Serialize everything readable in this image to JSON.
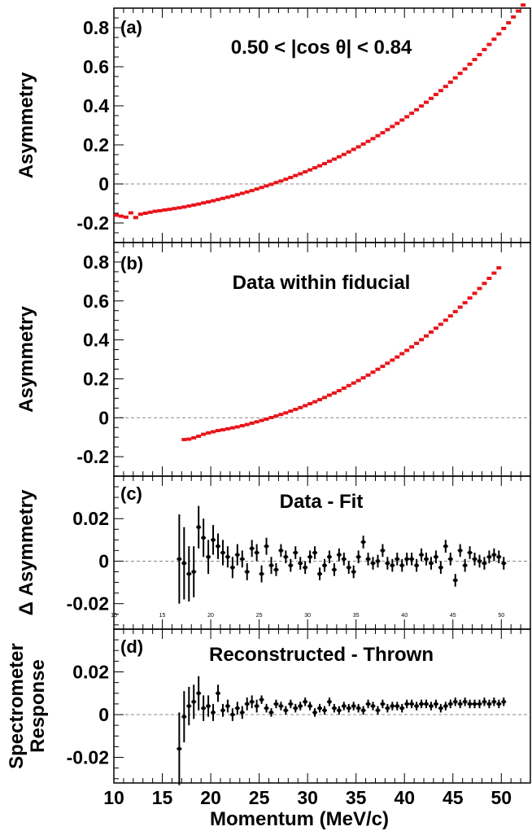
{
  "x_axis": {
    "label": "Momentum (MeV/c)",
    "ticks": [
      "10",
      "15",
      "20",
      "25",
      "30",
      "35",
      "40",
      "45",
      "50"
    ],
    "small_ticks": [
      "10",
      "15",
      "20",
      "25",
      "30",
      "35",
      "40",
      "45",
      "50"
    ]
  },
  "chart_data": [
    {
      "type": "scatter",
      "panel": "(a)",
      "annotation": "0.50 < |cos θ| < 0.84",
      "ylabel": "Asymmetry",
      "xlim": [
        10,
        53
      ],
      "ylim": [
        -0.3,
        0.9
      ],
      "yticks": [
        "-0.2",
        "0",
        "0.2",
        "0.4",
        "0.6",
        "0.8"
      ],
      "marker_color": "#e8141a",
      "points": [
        [
          10.25,
          -0.16
        ],
        [
          10.75,
          -0.165
        ],
        [
          11.25,
          -0.17
        ],
        [
          11.75,
          -0.148
        ],
        [
          12.25,
          -0.172
        ],
        [
          12.75,
          -0.155
        ],
        [
          13.25,
          -0.15
        ],
        [
          13.75,
          -0.145
        ],
        [
          14.25,
          -0.14
        ],
        [
          14.75,
          -0.137
        ],
        [
          15.25,
          -0.133
        ],
        [
          15.75,
          -0.13
        ],
        [
          16.25,
          -0.126
        ],
        [
          16.75,
          -0.122
        ],
        [
          17.25,
          -0.118
        ],
        [
          17.75,
          -0.113
        ],
        [
          18.25,
          -0.108
        ],
        [
          18.75,
          -0.103
        ],
        [
          19.25,
          -0.097
        ],
        [
          19.75,
          -0.092
        ],
        [
          20.25,
          -0.086
        ],
        [
          20.75,
          -0.08
        ],
        [
          21.25,
          -0.074
        ],
        [
          21.75,
          -0.068
        ],
        [
          22.25,
          -0.062
        ],
        [
          22.75,
          -0.055
        ],
        [
          23.25,
          -0.048
        ],
        [
          23.75,
          -0.041
        ],
        [
          24.25,
          -0.034
        ],
        [
          24.75,
          -0.026
        ],
        [
          25.25,
          -0.018
        ],
        [
          25.75,
          -0.01
        ],
        [
          26.25,
          -0.002
        ],
        [
          26.75,
          0.007
        ],
        [
          27.25,
          0.015
        ],
        [
          27.75,
          0.024
        ],
        [
          28.25,
          0.033
        ],
        [
          28.75,
          0.043
        ],
        [
          29.25,
          0.052
        ],
        [
          29.75,
          0.062
        ],
        [
          30.25,
          0.072
        ],
        [
          30.75,
          0.083
        ],
        [
          31.25,
          0.093
        ],
        [
          31.75,
          0.104
        ],
        [
          32.25,
          0.116
        ],
        [
          32.75,
          0.127
        ],
        [
          33.25,
          0.139
        ],
        [
          33.75,
          0.151
        ],
        [
          34.25,
          0.164
        ],
        [
          34.75,
          0.177
        ],
        [
          35.25,
          0.19
        ],
        [
          35.75,
          0.204
        ],
        [
          36.25,
          0.218
        ],
        [
          36.75,
          0.232
        ],
        [
          37.25,
          0.247
        ],
        [
          37.75,
          0.262
        ],
        [
          38.25,
          0.278
        ],
        [
          38.75,
          0.294
        ],
        [
          39.25,
          0.31
        ],
        [
          39.75,
          0.327
        ],
        [
          40.25,
          0.344
        ],
        [
          40.75,
          0.362
        ],
        [
          41.25,
          0.38
        ],
        [
          41.75,
          0.399
        ],
        [
          42.25,
          0.418
        ],
        [
          42.75,
          0.438
        ],
        [
          43.25,
          0.458
        ],
        [
          43.75,
          0.478
        ],
        [
          44.25,
          0.499
        ],
        [
          44.75,
          0.521
        ],
        [
          45.25,
          0.543
        ],
        [
          45.75,
          0.566
        ],
        [
          46.25,
          0.589
        ],
        [
          46.75,
          0.613
        ],
        [
          47.25,
          0.637
        ],
        [
          47.75,
          0.662
        ],
        [
          48.25,
          0.688
        ],
        [
          48.75,
          0.714
        ],
        [
          49.25,
          0.741
        ],
        [
          49.75,
          0.768
        ],
        [
          50.25,
          0.796
        ],
        [
          50.75,
          0.825
        ],
        [
          51.25,
          0.855
        ],
        [
          51.75,
          0.885
        ],
        [
          52.25,
          0.916
        ]
      ]
    },
    {
      "type": "scatter",
      "panel": "(b)",
      "annotation": "Data within fiducial",
      "ylabel": "Asymmetry",
      "xlim": [
        10,
        53
      ],
      "ylim": [
        -0.3,
        0.9
      ],
      "yticks": [
        "-0.2",
        "0",
        "0.2",
        "0.4",
        "0.6",
        "0.8"
      ],
      "marker_color": "#e8141a",
      "points": [
        [
          17.25,
          -0.112
        ],
        [
          17.75,
          -0.11
        ],
        [
          18.25,
          -0.103
        ],
        [
          18.75,
          -0.095
        ],
        [
          19.25,
          -0.085
        ],
        [
          19.75,
          -0.078
        ],
        [
          20.25,
          -0.072
        ],
        [
          20.75,
          -0.066
        ],
        [
          21.25,
          -0.062
        ],
        [
          21.75,
          -0.057
        ],
        [
          22.25,
          -0.052
        ],
        [
          22.75,
          -0.047
        ],
        [
          23.25,
          -0.041
        ],
        [
          23.75,
          -0.035
        ],
        [
          24.25,
          -0.028
        ],
        [
          24.75,
          -0.021
        ],
        [
          25.25,
          -0.014
        ],
        [
          25.75,
          -0.007
        ],
        [
          26.25,
          0.001
        ],
        [
          26.75,
          0.009
        ],
        [
          27.25,
          0.017
        ],
        [
          27.75,
          0.025
        ],
        [
          28.25,
          0.034
        ],
        [
          28.75,
          0.043
        ],
        [
          29.25,
          0.052
        ],
        [
          29.75,
          0.062
        ],
        [
          30.25,
          0.072
        ],
        [
          30.75,
          0.082
        ],
        [
          31.25,
          0.093
        ],
        [
          31.75,
          0.104
        ],
        [
          32.25,
          0.116
        ],
        [
          32.75,
          0.127
        ],
        [
          33.25,
          0.139
        ],
        [
          33.75,
          0.152
        ],
        [
          34.25,
          0.165
        ],
        [
          34.75,
          0.178
        ],
        [
          35.25,
          0.191
        ],
        [
          35.75,
          0.205
        ],
        [
          36.25,
          0.219
        ],
        [
          36.75,
          0.234
        ],
        [
          37.25,
          0.249
        ],
        [
          37.75,
          0.264
        ],
        [
          38.25,
          0.28
        ],
        [
          38.75,
          0.296
        ],
        [
          39.25,
          0.312
        ],
        [
          39.75,
          0.329
        ],
        [
          40.25,
          0.346
        ],
        [
          40.75,
          0.364
        ],
        [
          41.25,
          0.382
        ],
        [
          41.75,
          0.401
        ],
        [
          42.25,
          0.42
        ],
        [
          42.75,
          0.44
        ],
        [
          43.25,
          0.46
        ],
        [
          43.75,
          0.48
        ],
        [
          44.25,
          0.501
        ],
        [
          44.75,
          0.523
        ],
        [
          45.25,
          0.545
        ],
        [
          45.75,
          0.568
        ],
        [
          46.25,
          0.591
        ],
        [
          46.75,
          0.615
        ],
        [
          47.25,
          0.639
        ],
        [
          47.75,
          0.664
        ],
        [
          48.25,
          0.69
        ],
        [
          48.75,
          0.716
        ],
        [
          49.25,
          0.743
        ],
        [
          49.75,
          0.77
        ]
      ]
    },
    {
      "type": "scatter",
      "panel": "(c)",
      "annotation": "Data - Fit",
      "ylabel": "Δ Asymmetry",
      "xlim": [
        10,
        53
      ],
      "ylim": [
        -0.032,
        0.04
      ],
      "yticks": [
        "-0.02",
        "0",
        "0.02"
      ],
      "marker_color": "#000000",
      "points": [
        [
          16.75,
          0.001,
          0.021
        ],
        [
          17.25,
          -0.001,
          0.017
        ],
        [
          17.75,
          -0.006,
          0.013
        ],
        [
          18.25,
          -0.005,
          0.012
        ],
        [
          18.75,
          0.016,
          0.01
        ],
        [
          19.25,
          0.011,
          0.009
        ],
        [
          19.75,
          0.002,
          0.008
        ],
        [
          20.25,
          0.01,
          0.007
        ],
        [
          20.75,
          0.007,
          0.006
        ],
        [
          21.25,
          0.004,
          0.006
        ],
        [
          21.75,
          0.002,
          0.005
        ],
        [
          22.25,
          -0.003,
          0.005
        ],
        [
          22.75,
          0.003,
          0.005
        ],
        [
          23.25,
          0.001,
          0.004
        ],
        [
          23.75,
          -0.005,
          0.004
        ],
        [
          24.25,
          0.006,
          0.004
        ],
        [
          24.75,
          0.004,
          0.004
        ],
        [
          25.25,
          -0.006,
          0.004
        ],
        [
          25.75,
          0.007,
          0.004
        ],
        [
          26.25,
          -0.002,
          0.004
        ],
        [
          26.75,
          -0.004,
          0.003
        ],
        [
          27.25,
          0.005,
          0.003
        ],
        [
          27.75,
          0.002,
          0.003
        ],
        [
          28.25,
          -0.002,
          0.003
        ],
        [
          28.75,
          0.004,
          0.003
        ],
        [
          29.25,
          -0.001,
          0.003
        ],
        [
          29.75,
          -0.003,
          0.003
        ],
        [
          30.25,
          0.002,
          0.003
        ],
        [
          30.75,
          0.004,
          0.003
        ],
        [
          31.25,
          -0.006,
          0.003
        ],
        [
          31.75,
          -0.002,
          0.003
        ],
        [
          32.25,
          0.002,
          0.003
        ],
        [
          32.75,
          -0.004,
          0.003
        ],
        [
          33.25,
          0.003,
          0.003
        ],
        [
          33.75,
          0.001,
          0.003
        ],
        [
          34.25,
          -0.003,
          0.003
        ],
        [
          34.75,
          -0.005,
          0.003
        ],
        [
          35.25,
          0.002,
          0.003
        ],
        [
          35.75,
          0.009,
          0.003
        ],
        [
          36.25,
          0.001,
          0.003
        ],
        [
          36.75,
          -0.001,
          0.003
        ],
        [
          37.25,
          0.0,
          0.003
        ],
        [
          37.75,
          0.005,
          0.003
        ],
        [
          38.25,
          -0.001,
          0.003
        ],
        [
          38.75,
          -0.002,
          0.003
        ],
        [
          39.25,
          0.001,
          0.003
        ],
        [
          39.75,
          -0.002,
          0.003
        ],
        [
          40.25,
          0.001,
          0.003
        ],
        [
          40.75,
          0.001,
          0.003
        ],
        [
          41.25,
          -0.002,
          0.003
        ],
        [
          41.75,
          0.003,
          0.003
        ],
        [
          42.25,
          0.001,
          0.003
        ],
        [
          42.75,
          -0.001,
          0.003
        ],
        [
          43.25,
          0.002,
          0.003
        ],
        [
          43.75,
          -0.003,
          0.003
        ],
        [
          44.25,
          0.007,
          0.003
        ],
        [
          44.75,
          0.001,
          0.003
        ],
        [
          45.25,
          -0.009,
          0.003
        ],
        [
          45.75,
          0.005,
          0.003
        ],
        [
          46.25,
          -0.002,
          0.003
        ],
        [
          46.75,
          0.004,
          0.003
        ],
        [
          47.25,
          0.001,
          0.003
        ],
        [
          47.75,
          0.0,
          0.003
        ],
        [
          48.25,
          -0.001,
          0.003
        ],
        [
          48.75,
          0.002,
          0.003
        ],
        [
          49.25,
          0.003,
          0.003
        ],
        [
          49.75,
          0.002,
          0.003
        ],
        [
          50.25,
          -0.001,
          0.003
        ]
      ]
    },
    {
      "type": "scatter",
      "panel": "(d)",
      "annotation": "Reconstructed - Thrown",
      "ylabel": [
        "Spectrometer",
        "Response"
      ],
      "xlim": [
        10,
        53
      ],
      "ylim": [
        -0.032,
        0.04
      ],
      "yticks": [
        "-0.02",
        "0",
        "0.02"
      ],
      "marker_color": "#000000",
      "points": [
        [
          16.75,
          -0.016,
          0.017
        ],
        [
          17.25,
          -0.001,
          0.012
        ],
        [
          17.75,
          0.004,
          0.009
        ],
        [
          18.25,
          0.006,
          0.008
        ],
        [
          18.75,
          0.01,
          0.008
        ],
        [
          19.25,
          0.003,
          0.006
        ],
        [
          19.75,
          0.004,
          0.005
        ],
        [
          20.25,
          0.001,
          0.004
        ],
        [
          20.75,
          0.01,
          0.004
        ],
        [
          21.25,
          0.002,
          0.003
        ],
        [
          21.75,
          0.004,
          0.003
        ],
        [
          22.25,
          0.0,
          0.003
        ],
        [
          22.75,
          0.003,
          0.003
        ],
        [
          23.25,
          0.001,
          0.003
        ],
        [
          23.75,
          0.005,
          0.003
        ],
        [
          24.25,
          0.006,
          0.003
        ],
        [
          24.75,
          0.004,
          0.003
        ],
        [
          25.25,
          0.007,
          0.002
        ],
        [
          25.75,
          0.003,
          0.002
        ],
        [
          26.25,
          0.001,
          0.002
        ],
        [
          26.75,
          0.005,
          0.002
        ],
        [
          27.25,
          0.004,
          0.002
        ],
        [
          27.75,
          0.002,
          0.002
        ],
        [
          28.25,
          0.005,
          0.002
        ],
        [
          28.75,
          0.003,
          0.002
        ],
        [
          29.25,
          0.004,
          0.002
        ],
        [
          29.75,
          0.006,
          0.002
        ],
        [
          30.25,
          0.004,
          0.002
        ],
        [
          30.75,
          0.001,
          0.002
        ],
        [
          31.25,
          0.003,
          0.002
        ],
        [
          31.75,
          0.002,
          0.002
        ],
        [
          32.25,
          0.006,
          0.002
        ],
        [
          32.75,
          0.003,
          0.002
        ],
        [
          33.25,
          0.002,
          0.002
        ],
        [
          33.75,
          0.004,
          0.002
        ],
        [
          34.25,
          0.003,
          0.002
        ],
        [
          34.75,
          0.004,
          0.002
        ],
        [
          35.25,
          0.003,
          0.002
        ],
        [
          35.75,
          0.002,
          0.002
        ],
        [
          36.25,
          0.005,
          0.002
        ],
        [
          36.75,
          0.004,
          0.002
        ],
        [
          37.25,
          0.002,
          0.002
        ],
        [
          37.75,
          0.005,
          0.002
        ],
        [
          38.25,
          0.003,
          0.002
        ],
        [
          38.75,
          0.004,
          0.002
        ],
        [
          39.25,
          0.004,
          0.002
        ],
        [
          39.75,
          0.003,
          0.002
        ],
        [
          40.25,
          0.005,
          0.002
        ],
        [
          40.75,
          0.005,
          0.002
        ],
        [
          41.25,
          0.004,
          0.002
        ],
        [
          41.75,
          0.005,
          0.002
        ],
        [
          42.25,
          0.005,
          0.002
        ],
        [
          42.75,
          0.004,
          0.002
        ],
        [
          43.25,
          0.005,
          0.002
        ],
        [
          43.75,
          0.003,
          0.002
        ],
        [
          44.25,
          0.004,
          0.002
        ],
        [
          44.75,
          0.005,
          0.002
        ],
        [
          45.25,
          0.006,
          0.002
        ],
        [
          45.75,
          0.005,
          0.002
        ],
        [
          46.25,
          0.006,
          0.002
        ],
        [
          46.75,
          0.005,
          0.002
        ],
        [
          47.25,
          0.005,
          0.002
        ],
        [
          47.75,
          0.005,
          0.002
        ],
        [
          48.25,
          0.006,
          0.002
        ],
        [
          48.75,
          0.005,
          0.002
        ],
        [
          49.25,
          0.006,
          0.002
        ],
        [
          49.75,
          0.005,
          0.002
        ],
        [
          50.25,
          0.006,
          0.002
        ]
      ]
    }
  ]
}
